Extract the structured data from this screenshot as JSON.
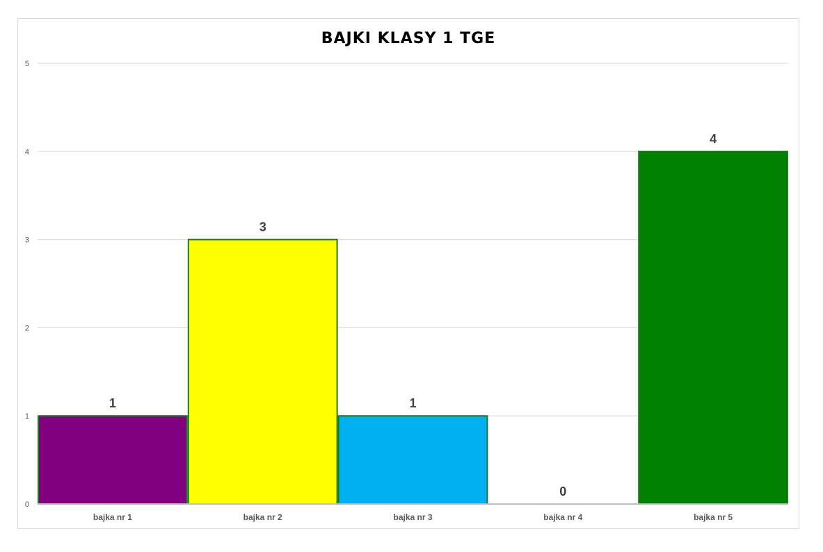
{
  "chart_data": {
    "type": "bar",
    "title": "BAJKI KLASY 1 TGE",
    "categories": [
      "bajka nr 1",
      "bajka nr 2",
      "bajka nr 3",
      "bajka nr 4",
      "bajka nr 5"
    ],
    "values": [
      1,
      3,
      1,
      0,
      4
    ],
    "bar_colors": [
      "#800080",
      "#ffff00",
      "#00b0f0",
      "#ffffff",
      "#008000"
    ],
    "bar_border_color": "#1e7b1e",
    "ylim": [
      0,
      5
    ],
    "yticks": [
      0,
      1,
      2,
      3,
      4,
      5
    ],
    "grid": true,
    "legend": false,
    "data_labels": true
  }
}
